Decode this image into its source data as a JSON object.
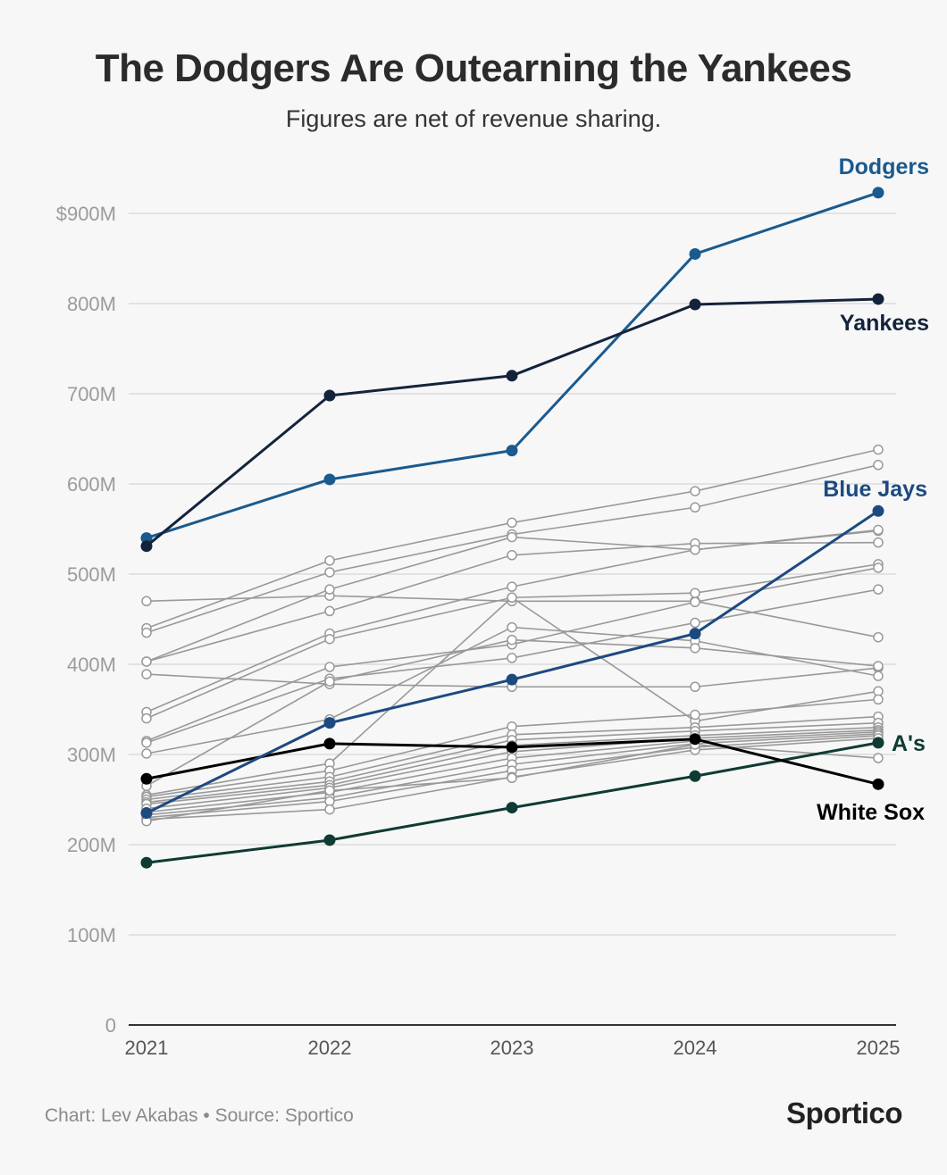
{
  "chart_data": {
    "type": "line",
    "title": "The Dodgers Are Outearning the Yankees",
    "subtitle": "Figures are net of revenue sharing.",
    "x": [
      "2021",
      "2022",
      "2023",
      "2024",
      "2025"
    ],
    "ylim": [
      0,
      900
    ],
    "yticks": [
      0,
      100,
      200,
      300,
      400,
      500,
      600,
      700,
      800,
      900
    ],
    "ytick_labels": [
      "0",
      "100M",
      "200M",
      "300M",
      "400M",
      "500M",
      "600M",
      "700M",
      "800M",
      "$900M"
    ],
    "units": "millions of dollars",
    "highlighted_series": [
      {
        "name": "Dodgers",
        "label": "Dodgers",
        "color": "#1a5a8e",
        "values": [
          540,
          605,
          637,
          855,
          923
        ]
      },
      {
        "name": "Yankees",
        "label": "Yankees",
        "color": "#14233c",
        "values": [
          531,
          698,
          720,
          799,
          805
        ]
      },
      {
        "name": "Blue Jays",
        "label": "Blue Jays",
        "color": "#1c4a80",
        "values": [
          235,
          335,
          383,
          434,
          570
        ]
      },
      {
        "name": "White Sox",
        "label": "White Sox",
        "color": "#000000",
        "values": [
          273,
          312,
          308,
          317,
          267
        ]
      },
      {
        "name": "Athletics",
        "label": "A's",
        "color": "#0e3b33",
        "values": [
          180,
          205,
          241,
          276,
          313
        ]
      }
    ],
    "other_series_color": "#999999",
    "other_series": [
      [
        470,
        476,
        470,
        470,
        430
      ],
      [
        440,
        515,
        557,
        592,
        638
      ],
      [
        435,
        502,
        544,
        574,
        621
      ],
      [
        403,
        483,
        541,
        527,
        548
      ],
      [
        403,
        459,
        521,
        534,
        535
      ],
      [
        389,
        378,
        375,
        375,
        396
      ],
      [
        347,
        434,
        486,
        527,
        549
      ],
      [
        340,
        428,
        474,
        479,
        511
      ],
      [
        315,
        397,
        422,
        469,
        507
      ],
      [
        313,
        384,
        407,
        446,
        483
      ],
      [
        301,
        339,
        441,
        426,
        387
      ],
      [
        265,
        381,
        427,
        418,
        398
      ],
      [
        255,
        290,
        474,
        337,
        370
      ],
      [
        253,
        282,
        331,
        344,
        361
      ],
      [
        250,
        275,
        322,
        330,
        342
      ],
      [
        247,
        270,
        316,
        326,
        335
      ],
      [
        245,
        266,
        310,
        321,
        330
      ],
      [
        240,
        263,
        303,
        318,
        327
      ],
      [
        236,
        258,
        296,
        315,
        325
      ],
      [
        233,
        252,
        289,
        312,
        323
      ],
      [
        230,
        248,
        282,
        308,
        321
      ],
      [
        228,
        239,
        275,
        305,
        318
      ],
      [
        226,
        260,
        274,
        311,
        296
      ]
    ]
  },
  "footer": {
    "credit": "Chart: Lev Akabas • Source: Sportico",
    "brand": "Sportico"
  }
}
